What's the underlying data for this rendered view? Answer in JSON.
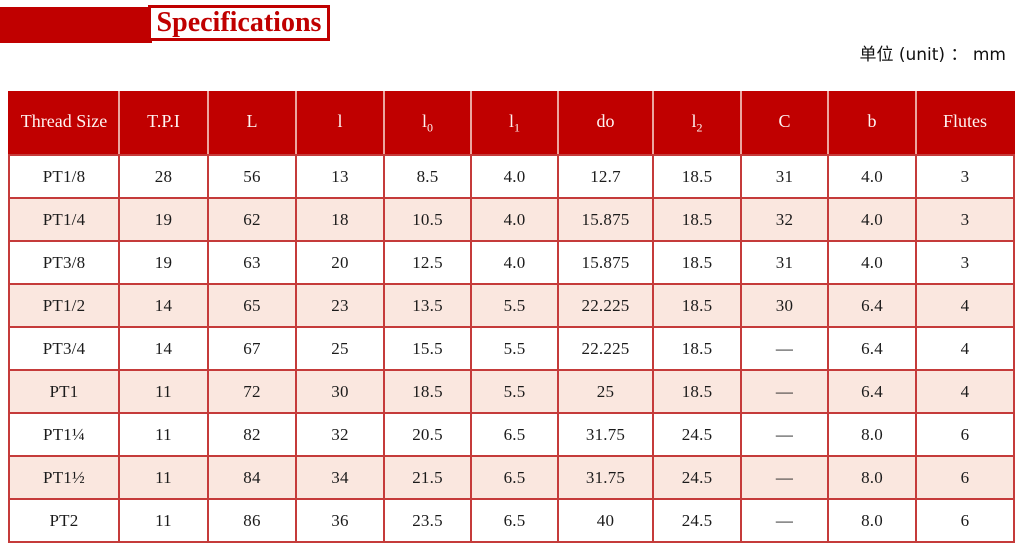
{
  "header": {
    "title": "Specifications",
    "unit_note": "单位 (unit) ： mm"
  },
  "colors": {
    "accent_red": "#c00000",
    "grid_red": "#c53b3a",
    "header_divider_pink": "#eba6a0",
    "stripe_pink": "#fae7df",
    "text_black": "#1b1b1b"
  },
  "table": {
    "columns": [
      {
        "label": "Thread Size",
        "sub": ""
      },
      {
        "label": "T.P.I",
        "sub": ""
      },
      {
        "label": "L",
        "sub": ""
      },
      {
        "label": "l",
        "sub": ""
      },
      {
        "label": "l",
        "sub": "0"
      },
      {
        "label": "l",
        "sub": "1"
      },
      {
        "label": "do",
        "sub": ""
      },
      {
        "label": "l",
        "sub": "2"
      },
      {
        "label": "C",
        "sub": ""
      },
      {
        "label": "b",
        "sub": ""
      },
      {
        "label": "Flutes",
        "sub": ""
      }
    ],
    "rows": [
      {
        "cells": [
          "PT1/8",
          "28",
          "56",
          "13",
          "8.5",
          "4.0",
          "12.7",
          "18.5",
          "31",
          "4.0",
          "3"
        ]
      },
      {
        "cells": [
          "PT1/4",
          "19",
          "62",
          "18",
          "10.5",
          "4.0",
          "15.875",
          "18.5",
          "32",
          "4.0",
          "3"
        ]
      },
      {
        "cells": [
          "PT3/8",
          "19",
          "63",
          "20",
          "12.5",
          "4.0",
          "15.875",
          "18.5",
          "31",
          "4.0",
          "3"
        ]
      },
      {
        "cells": [
          "PT1/2",
          "14",
          "65",
          "23",
          "13.5",
          "5.5",
          "22.225",
          "18.5",
          "30",
          "6.4",
          "4"
        ]
      },
      {
        "cells": [
          "PT3/4",
          "14",
          "67",
          "25",
          "15.5",
          "5.5",
          "22.225",
          "18.5",
          "—",
          "6.4",
          "4"
        ]
      },
      {
        "cells": [
          "PT1",
          "11",
          "72",
          "30",
          "18.5",
          "5.5",
          "25",
          "18.5",
          "—",
          "6.4",
          "4"
        ]
      },
      {
        "cells": [
          "PT1¼",
          "11",
          "82",
          "32",
          "20.5",
          "6.5",
          "31.75",
          "24.5",
          "—",
          "8.0",
          "6"
        ]
      },
      {
        "cells": [
          "PT1½",
          "11",
          "84",
          "34",
          "21.5",
          "6.5",
          "31.75",
          "24.5",
          "—",
          "8.0",
          "6"
        ]
      },
      {
        "cells": [
          "PT2",
          "11",
          "86",
          "36",
          "23.5",
          "6.5",
          "40",
          "24.5",
          "—",
          "8.0",
          "6"
        ]
      }
    ]
  }
}
